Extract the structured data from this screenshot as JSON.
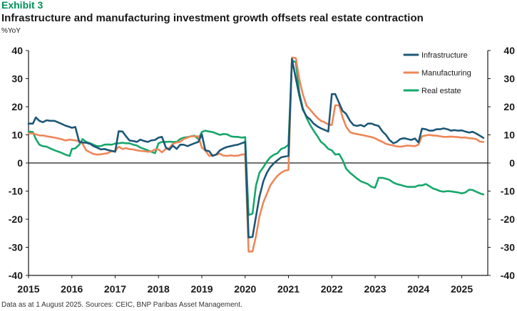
{
  "exhibit": "Exhibit 3",
  "title": "Infrastructure and manufacturing investment growth offsets real estate contraction",
  "unit_label": "%YoY",
  "footer": "Data as at 1 August 2025. Sources: CEIC, BNP Paribas Asset Management.",
  "colors": {
    "infrastructure": "#1d5777",
    "manufacturing": "#ee8657",
    "real_estate": "#17a76b",
    "axis": "#1a1a1a"
  },
  "chart_data": {
    "type": "line",
    "title": "Infrastructure and manufacturing investment growth offsets real estate contraction",
    "ylabel": "%YoY",
    "xlabel": "",
    "ylim": [
      -40,
      40
    ],
    "xlim": [
      2015.0,
      2025.6
    ],
    "yticks": [
      "40",
      "30",
      "20",
      "10",
      "0",
      "-10",
      "-20",
      "-30",
      "-40"
    ],
    "yticks_right": [
      "40",
      "30",
      "20",
      "10",
      "0",
      "-10",
      "-20",
      "-30",
      "-40"
    ],
    "xticks": [
      "2015",
      "2016",
      "2017",
      "2018",
      "2019",
      "2020",
      "2021",
      "2022",
      "2023",
      "2024",
      "2025"
    ],
    "legend": [
      "Infrastructure",
      "Manufacturing",
      "Real estate"
    ],
    "legend_position": "top-right",
    "grid": false,
    "series": [
      {
        "name": "Infrastructure",
        "x": [
          2015.0,
          2015.1,
          2015.17,
          2015.25,
          2015.33,
          2015.42,
          2015.5,
          2015.6,
          2015.75,
          2015.85,
          2015.95,
          2016.0,
          2016.08,
          2016.17,
          2016.25,
          2016.33,
          2016.42,
          2016.5,
          2016.58,
          2016.67,
          2016.75,
          2016.83,
          2016.92,
          2017.0,
          2017.08,
          2017.17,
          2017.25,
          2017.33,
          2017.42,
          2017.5,
          2017.58,
          2017.67,
          2017.75,
          2017.83,
          2017.92,
          2018.0,
          2018.08,
          2018.17,
          2018.25,
          2018.33,
          2018.42,
          2018.5,
          2018.58,
          2018.67,
          2018.75,
          2018.83,
          2018.92,
          2019.0,
          2019.08,
          2019.17,
          2019.25,
          2019.33,
          2019.42,
          2019.5,
          2019.58,
          2019.67,
          2019.75,
          2019.83,
          2019.92,
          2020.0,
          2020.08,
          2020.17,
          2020.25,
          2020.33,
          2020.42,
          2020.5,
          2020.58,
          2020.67,
          2020.75,
          2020.83,
          2020.92,
          2021.0,
          2021.08,
          2021.17,
          2021.25,
          2021.33,
          2021.42,
          2021.5,
          2021.58,
          2021.67,
          2021.75,
          2021.83,
          2021.92,
          2022.0,
          2022.08,
          2022.17,
          2022.25,
          2022.33,
          2022.42,
          2022.5,
          2022.58,
          2022.67,
          2022.75,
          2022.83,
          2022.92,
          2023.0,
          2023.08,
          2023.17,
          2023.25,
          2023.33,
          2023.42,
          2023.5,
          2023.58,
          2023.67,
          2023.75,
          2023.83,
          2023.92,
          2024.0,
          2024.08,
          2024.17,
          2024.25,
          2024.33,
          2024.42,
          2024.5,
          2024.58,
          2024.67,
          2024.75,
          2024.83,
          2024.92,
          2025.0,
          2025.08,
          2025.17,
          2025.25,
          2025.33,
          2025.42,
          2025.5
        ],
        "values": [
          14,
          14,
          16.2,
          15,
          14.5,
          15.2,
          15,
          15,
          14,
          13.3,
          12.8,
          12.5,
          12.8,
          7.5,
          7.3,
          7.2,
          6.8,
          6,
          5.5,
          4.8,
          5.0,
          4.6,
          4.3,
          4.0,
          11.3,
          11.2,
          9.5,
          8,
          7.8,
          7.5,
          8.3,
          7.8,
          7.5,
          8,
          8.2,
          9.0,
          9.3,
          5.5,
          4.7,
          6.2,
          5.0,
          6.5,
          6.5,
          6.0,
          6.5,
          7.0,
          7.5,
          10.2,
          4.5,
          4.2,
          2.5,
          3.0,
          4.5,
          5.2,
          5.7,
          6.0,
          6.3,
          6.5,
          7.0,
          7.5,
          -26.5,
          -26.3,
          -19.0,
          -12.0,
          -6.5,
          -3.5,
          -1.5,
          0,
          1.0,
          2.0,
          2.3,
          2.5,
          37,
          30,
          24.0,
          19.0,
          16.5,
          15.5,
          14.0,
          13.0,
          12.3,
          11.8,
          11.2,
          24.5,
          24.5,
          21.3,
          18.5,
          17.5,
          15.0,
          13.5,
          13.2,
          13.5,
          13.0,
          14.0,
          14.0,
          13.5,
          13.2,
          11.2,
          10.0,
          8.2,
          7.0,
          7.5,
          8.5,
          8.8,
          8.5,
          8.2,
          8.7,
          7.3,
          12.2,
          12.0,
          11.5,
          11.5,
          12.0,
          12.0,
          12.3,
          12.0,
          11.5,
          11.7,
          11.5,
          11.6,
          11.2,
          10.8,
          11.1,
          10.5,
          9.7,
          8.9
        ]
      },
      {
        "name": "Manufacturing",
        "x": [
          2015.0,
          2015.1,
          2015.17,
          2015.25,
          2015.33,
          2015.42,
          2015.5,
          2015.6,
          2015.75,
          2015.85,
          2015.95,
          2016.0,
          2016.08,
          2016.17,
          2016.25,
          2016.33,
          2016.42,
          2016.5,
          2016.58,
          2016.67,
          2016.75,
          2016.83,
          2016.92,
          2017.0,
          2017.08,
          2017.17,
          2017.25,
          2017.33,
          2017.42,
          2017.5,
          2017.58,
          2017.67,
          2017.75,
          2017.83,
          2017.92,
          2018.0,
          2018.08,
          2018.17,
          2018.25,
          2018.33,
          2018.42,
          2018.5,
          2018.58,
          2018.67,
          2018.75,
          2018.83,
          2018.92,
          2019.0,
          2019.08,
          2019.17,
          2019.25,
          2019.33,
          2019.42,
          2019.5,
          2019.58,
          2019.67,
          2019.75,
          2019.83,
          2019.92,
          2020.0,
          2020.08,
          2020.17,
          2020.25,
          2020.33,
          2020.42,
          2020.5,
          2020.58,
          2020.67,
          2020.75,
          2020.83,
          2020.92,
          2021.0,
          2021.08,
          2021.17,
          2021.25,
          2021.33,
          2021.42,
          2021.5,
          2021.58,
          2021.67,
          2021.75,
          2021.83,
          2021.92,
          2022.0,
          2022.08,
          2022.17,
          2022.25,
          2022.33,
          2022.42,
          2022.5,
          2022.58,
          2022.67,
          2022.75,
          2022.83,
          2022.92,
          2023.0,
          2023.08,
          2023.17,
          2023.25,
          2023.33,
          2023.42,
          2023.5,
          2023.58,
          2023.67,
          2023.75,
          2023.83,
          2023.92,
          2024.0,
          2024.08,
          2024.17,
          2024.25,
          2024.33,
          2024.42,
          2024.5,
          2024.58,
          2024.67,
          2024.75,
          2024.83,
          2024.92,
          2025.0,
          2025.08,
          2025.17,
          2025.25,
          2025.33,
          2025.42,
          2025.5
        ],
        "values": [
          10.5,
          10.5,
          10.2,
          9.8,
          9.8,
          9.5,
          9.3,
          9.0,
          8.5,
          8.0,
          8.3,
          8.2,
          8.0,
          7.8,
          6.8,
          4.5,
          3.8,
          3.2,
          3.0,
          3.1,
          3.3,
          3.5,
          4.2,
          4.2,
          5.8,
          5.0,
          5.3,
          4.9,
          4.8,
          4.5,
          4.3,
          4.2,
          4.0,
          4.1,
          4.8,
          4.8,
          3.8,
          5.0,
          5.3,
          6.8,
          7.3,
          7.5,
          8.5,
          9.0,
          9.5,
          9.5,
          9.5,
          5.5,
          4.5,
          2.5,
          2.7,
          3.0,
          3.3,
          2.6,
          2.5,
          2.7,
          2.5,
          2.6,
          3.0,
          3.1,
          -31.5,
          -31.5,
          -26.0,
          -19.0,
          -14.0,
          -11.0,
          -8.0,
          -6.0,
          -4.5,
          -3.5,
          -2.7,
          -2.5,
          37.5,
          37.3,
          29.8,
          24.5,
          20.3,
          19.0,
          17.5,
          16.0,
          15.0,
          14.5,
          13.7,
          13.5,
          20.5,
          20.5,
          16.2,
          13.0,
          11.0,
          10.5,
          10.3,
          10.0,
          9.8,
          9.5,
          9.2,
          8.8,
          8.1,
          7.5,
          6.8,
          6.5,
          6.2,
          5.9,
          5.8,
          6.0,
          6.2,
          6.1,
          6.0,
          6.5,
          9.5,
          9.8,
          10.0,
          9.8,
          9.7,
          9.5,
          9.3,
          9.3,
          9.4,
          9.3,
          9.2,
          9.0,
          9.1,
          8.8,
          8.7,
          8.5,
          7.6,
          7.5
        ]
      },
      {
        "name": "Real estate",
        "x": [
          2015.0,
          2015.1,
          2015.17,
          2015.25,
          2015.33,
          2015.42,
          2015.5,
          2015.6,
          2015.75,
          2015.85,
          2015.95,
          2016.0,
          2016.08,
          2016.17,
          2016.25,
          2016.33,
          2016.42,
          2016.5,
          2016.58,
          2016.67,
          2016.75,
          2016.83,
          2016.92,
          2017.0,
          2017.08,
          2017.17,
          2017.25,
          2017.33,
          2017.42,
          2017.5,
          2017.58,
          2017.67,
          2017.75,
          2017.83,
          2017.92,
          2018.0,
          2018.08,
          2018.17,
          2018.25,
          2018.33,
          2018.42,
          2018.5,
          2018.58,
          2018.67,
          2018.75,
          2018.83,
          2018.92,
          2019.0,
          2019.08,
          2019.17,
          2019.25,
          2019.33,
          2019.42,
          2019.5,
          2019.58,
          2019.67,
          2019.75,
          2019.83,
          2019.92,
          2020.0,
          2020.08,
          2020.17,
          2020.25,
          2020.33,
          2020.42,
          2020.5,
          2020.58,
          2020.67,
          2020.75,
          2020.83,
          2020.92,
          2021.0,
          2021.08,
          2021.17,
          2021.25,
          2021.33,
          2021.42,
          2021.5,
          2021.58,
          2021.67,
          2021.75,
          2021.83,
          2021.92,
          2022.0,
          2022.08,
          2022.17,
          2022.25,
          2022.33,
          2022.42,
          2022.5,
          2022.58,
          2022.67,
          2022.75,
          2022.83,
          2022.92,
          2023.0,
          2023.08,
          2023.17,
          2023.25,
          2023.33,
          2023.42,
          2023.5,
          2023.58,
          2023.67,
          2023.75,
          2023.83,
          2023.92,
          2024.0,
          2024.08,
          2024.17,
          2024.25,
          2024.33,
          2024.42,
          2024.5,
          2024.58,
          2024.67,
          2024.75,
          2024.83,
          2024.92,
          2025.0,
          2025.08,
          2025.17,
          2025.25,
          2025.33,
          2025.42,
          2025.5
        ],
        "values": [
          11.2,
          11.0,
          8.5,
          6.5,
          6.0,
          5.8,
          5.2,
          4.5,
          3.7,
          3.0,
          2.5,
          5.0,
          5.2,
          6.5,
          8.5,
          7.5,
          7.0,
          6.5,
          6.0,
          6.0,
          6.5,
          6.6,
          6.5,
          6.9,
          7.0,
          7.2,
          7.0,
          7.0,
          6.5,
          6.2,
          5.5,
          5.0,
          4.5,
          4.0,
          3.5,
          7.0,
          7.5,
          7.5,
          7.6,
          7.5,
          7.5,
          8.5,
          9.0,
          9.2,
          9.5,
          9.7,
          8.5,
          11.0,
          11.5,
          11.2,
          11.0,
          10.5,
          10.0,
          10.3,
          10.2,
          9.5,
          9.3,
          9.3,
          9.0,
          9.2,
          -18.5,
          -18.0,
          -8.0,
          -3.5,
          -1.5,
          0.5,
          2.0,
          3.0,
          3.5,
          5.0,
          5.5,
          6.5,
          36.5,
          35.8,
          25.0,
          19.5,
          16.0,
          13.5,
          11.5,
          9.5,
          7.5,
          6.5,
          5.0,
          4.5,
          3.0,
          3.2,
          1.0,
          -2.0,
          -3.5,
          -4.5,
          -5.5,
          -6.5,
          -7.0,
          -7.5,
          -8.5,
          -8.8,
          -5.3,
          -5.3,
          -5.6,
          -6.0,
          -7.0,
          -7.5,
          -7.8,
          -8.2,
          -8.5,
          -8.5,
          -8.5,
          -8.0,
          -8.0,
          -7.5,
          -8.2,
          -9.0,
          -9.5,
          -10.0,
          -10.2,
          -10.0,
          -10.1,
          -10.3,
          -10.5,
          -10.8,
          -10.5,
          -9.5,
          -9.6,
          -10.2,
          -10.8,
          -11.2
        ]
      }
    ]
  }
}
